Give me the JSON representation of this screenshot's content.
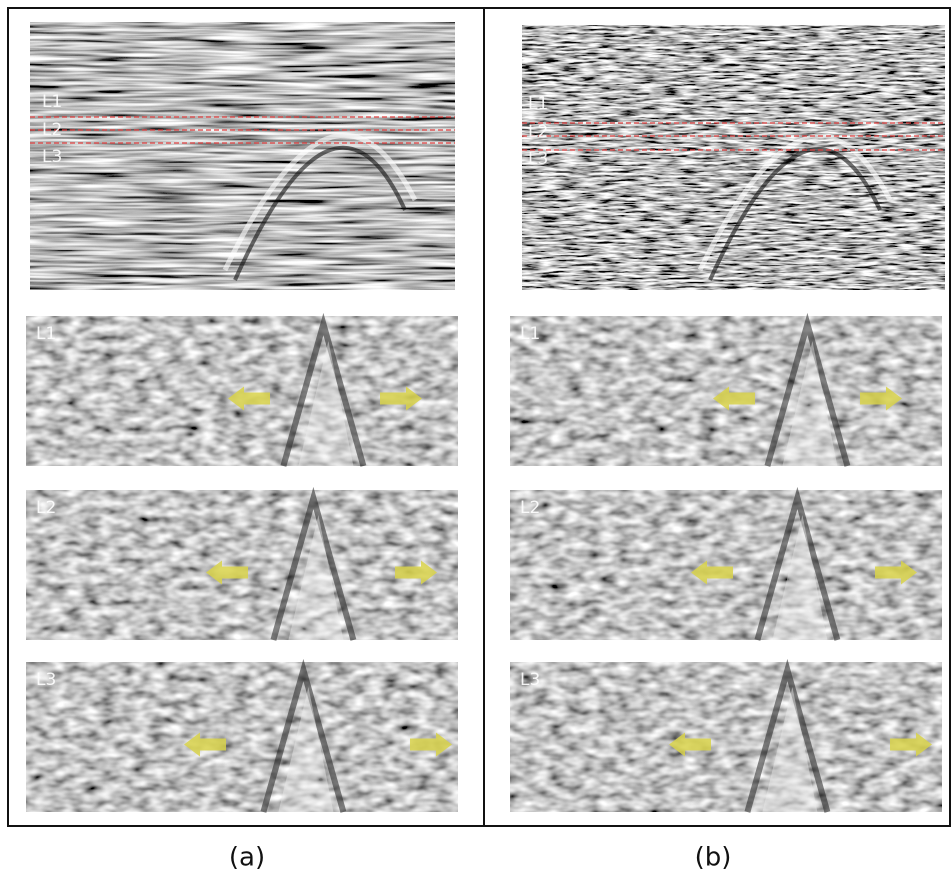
{
  "panels": [
    {
      "caption": "(a)",
      "profile_labels": [
        "L1",
        "L2",
        "L3"
      ],
      "slice_labels": [
        "L1",
        "L2",
        "L3"
      ]
    },
    {
      "caption": "(b)",
      "profile_labels": [
        "L1",
        "L2",
        "L3"
      ],
      "slice_labels": [
        "L1",
        "L2",
        "L3"
      ]
    }
  ]
}
